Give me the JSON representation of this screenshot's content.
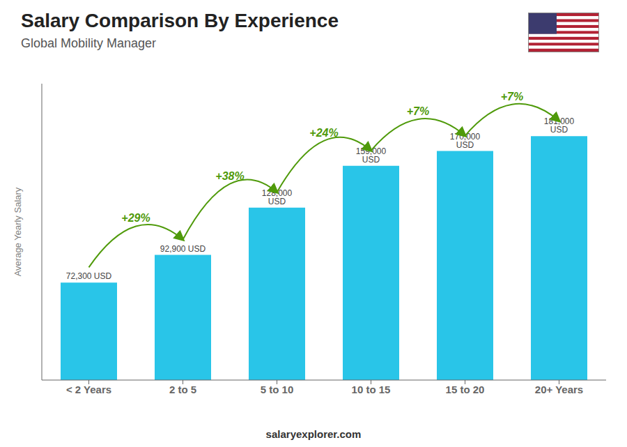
{
  "chart_data": {
    "type": "bar",
    "title": "Salary Comparison By Experience",
    "subtitle": "Global Mobility Manager",
    "y_label": "Average Yearly Salary",
    "footer": "salaryexplorer.com",
    "categories": [
      "< 2 Years",
      "2 to 5",
      "5 to 10",
      "10 to 15",
      "15 to 20",
      "20+ Years"
    ],
    "values": [
      72300,
      92900,
      128000,
      159000,
      170000,
      181000
    ],
    "value_labels": [
      "72,300 USD",
      "92,900 USD",
      "128,000 USD",
      "159,000 USD",
      "170,000 USD",
      "181,000 USD"
    ],
    "data_labels": true,
    "annotations": [
      "+29%",
      "+38%",
      "+24%",
      "+7%",
      "+7%"
    ],
    "color": "#29C5E8",
    "ylim": [
      0,
      220000
    ],
    "grid": false,
    "tick_labels": "x"
  }
}
